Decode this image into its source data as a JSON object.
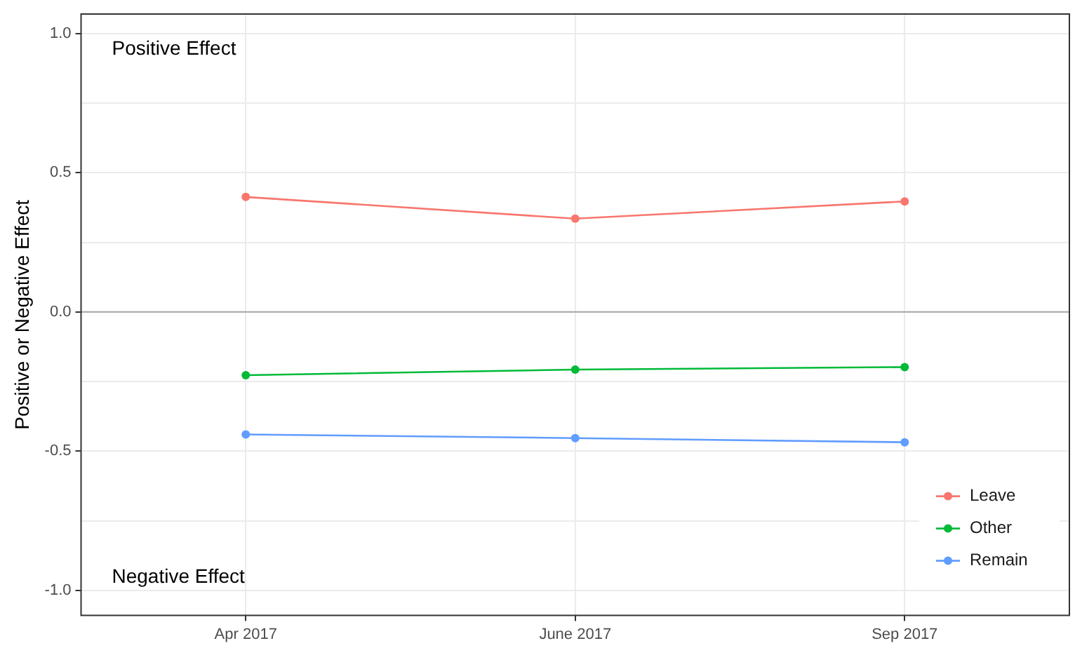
{
  "chart_data": {
    "type": "line",
    "ylabel": "Positive or Negative Effect",
    "categories": [
      "Apr 2017",
      "June 2017",
      "Sep 2017"
    ],
    "series": [
      {
        "name": "Leave",
        "color": "#f8766d",
        "values": [
          0.413,
          0.335,
          0.397
        ]
      },
      {
        "name": "Other",
        "color": "#00ba38",
        "values": [
          -0.227,
          -0.207,
          -0.198
        ]
      },
      {
        "name": "Remain",
        "color": "#619cff",
        "values": [
          -0.44,
          -0.453,
          -0.468
        ]
      }
    ],
    "ylim": [
      -1.09,
      1.07
    ],
    "yticks": [
      {
        "value": -1,
        "label": "-1.0"
      },
      {
        "value": -0.75,
        "label": null
      },
      -0.5,
      {
        "value": -0.25,
        "label": null
      },
      {
        "value": 0,
        "label": "0.0"
      },
      {
        "value": 0.25,
        "label": null
      },
      0.5,
      {
        "value": 0.75,
        "label": null
      },
      {
        "value": 1,
        "label": "1.0"
      }
    ],
    "ref_lines": [
      {
        "axis": "y",
        "value": 0,
        "color": "#a6a6a6"
      }
    ],
    "annotations": [
      "Positive Effect",
      "Negative Effect"
    ],
    "grid": true,
    "legend": "bottom right",
    "marker": "circle",
    "line_style": "solid"
  }
}
